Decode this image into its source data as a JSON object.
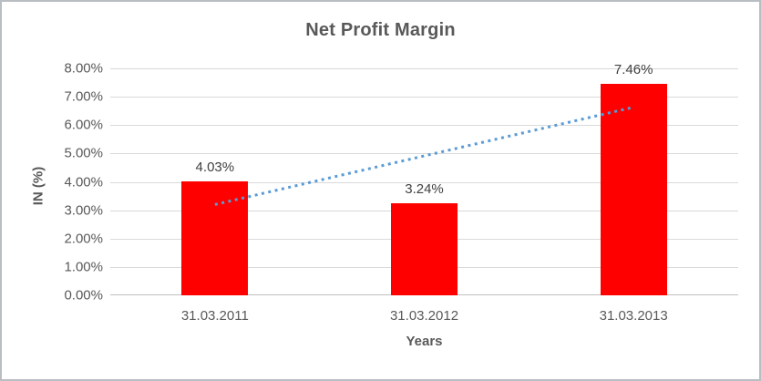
{
  "chart_data": {
    "type": "bar",
    "title": "Net Profit Margin",
    "xlabel": "Years",
    "ylabel": "IN (%)",
    "categories": [
      "31.03.2011",
      "31.03.2012",
      "31.03.2013"
    ],
    "values": [
      4.03,
      3.24,
      7.46
    ],
    "data_labels": [
      "4.03%",
      "3.24%",
      "7.46%"
    ],
    "ylim": [
      0,
      8
    ],
    "ytick_labels": [
      "0.00%",
      "1.00%",
      "2.00%",
      "3.00%",
      "4.00%",
      "5.00%",
      "6.00%",
      "7.00%",
      "8.00%"
    ],
    "grid": true,
    "legend": "none",
    "bar_color": "#FF0000",
    "trendline": {
      "type": "linear",
      "style": "dotted",
      "color": "#5B9BD5",
      "start_value": 3.2,
      "end_value": 6.63
    }
  },
  "colors": {
    "title_text": "#595959",
    "axis_text": "#595959",
    "data_label_text": "#404040",
    "gridline": "#D9D9D9",
    "axis_line": "#BFBFBF",
    "frame_border": "#B9BEC2",
    "background": "#FFFFFF"
  }
}
